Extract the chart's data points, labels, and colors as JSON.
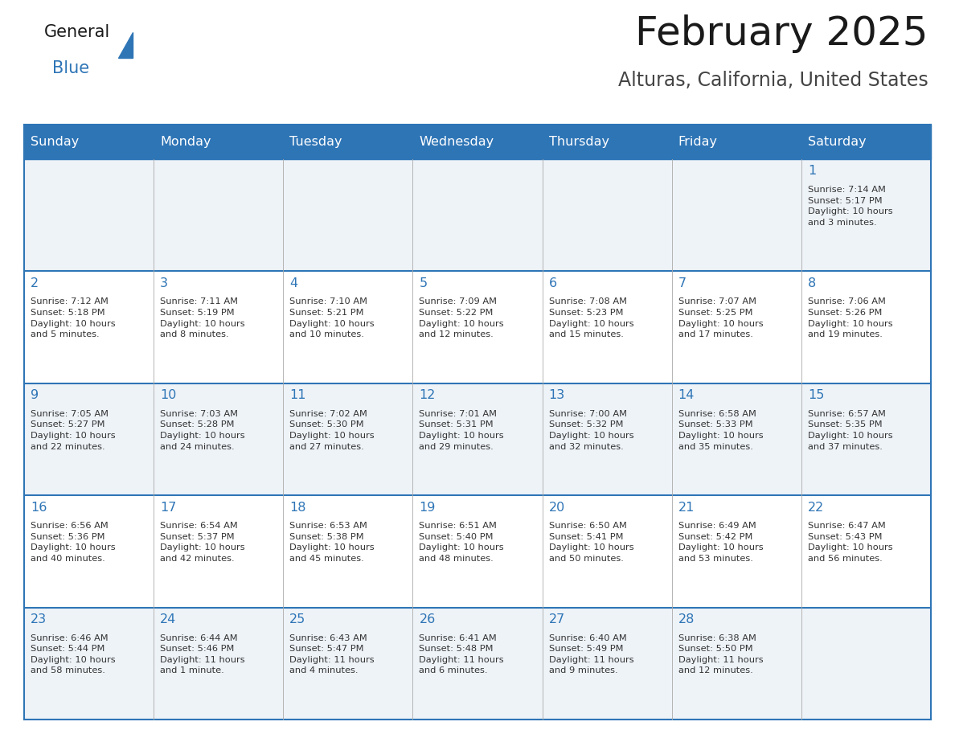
{
  "title": "February 2025",
  "subtitle": "Alturas, California, United States",
  "header_bg": "#2E75B6",
  "header_text_color": "#FFFFFF",
  "cell_bg_light": "#EEF3F8",
  "cell_bg_white": "#FFFFFF",
  "day_headers": [
    "Sunday",
    "Monday",
    "Tuesday",
    "Wednesday",
    "Thursday",
    "Friday",
    "Saturday"
  ],
  "title_color": "#1A1A1A",
  "subtitle_color": "#444444",
  "day_num_color": "#2E75B6",
  "info_color": "#333333",
  "line_color": "#2E75B6",
  "weeks": [
    [
      {
        "day": "",
        "info": ""
      },
      {
        "day": "",
        "info": ""
      },
      {
        "day": "",
        "info": ""
      },
      {
        "day": "",
        "info": ""
      },
      {
        "day": "",
        "info": ""
      },
      {
        "day": "",
        "info": ""
      },
      {
        "day": "1",
        "info": "Sunrise: 7:14 AM\nSunset: 5:17 PM\nDaylight: 10 hours\nand 3 minutes."
      }
    ],
    [
      {
        "day": "2",
        "info": "Sunrise: 7:12 AM\nSunset: 5:18 PM\nDaylight: 10 hours\nand 5 minutes."
      },
      {
        "day": "3",
        "info": "Sunrise: 7:11 AM\nSunset: 5:19 PM\nDaylight: 10 hours\nand 8 minutes."
      },
      {
        "day": "4",
        "info": "Sunrise: 7:10 AM\nSunset: 5:21 PM\nDaylight: 10 hours\nand 10 minutes."
      },
      {
        "day": "5",
        "info": "Sunrise: 7:09 AM\nSunset: 5:22 PM\nDaylight: 10 hours\nand 12 minutes."
      },
      {
        "day": "6",
        "info": "Sunrise: 7:08 AM\nSunset: 5:23 PM\nDaylight: 10 hours\nand 15 minutes."
      },
      {
        "day": "7",
        "info": "Sunrise: 7:07 AM\nSunset: 5:25 PM\nDaylight: 10 hours\nand 17 minutes."
      },
      {
        "day": "8",
        "info": "Sunrise: 7:06 AM\nSunset: 5:26 PM\nDaylight: 10 hours\nand 19 minutes."
      }
    ],
    [
      {
        "day": "9",
        "info": "Sunrise: 7:05 AM\nSunset: 5:27 PM\nDaylight: 10 hours\nand 22 minutes."
      },
      {
        "day": "10",
        "info": "Sunrise: 7:03 AM\nSunset: 5:28 PM\nDaylight: 10 hours\nand 24 minutes."
      },
      {
        "day": "11",
        "info": "Sunrise: 7:02 AM\nSunset: 5:30 PM\nDaylight: 10 hours\nand 27 minutes."
      },
      {
        "day": "12",
        "info": "Sunrise: 7:01 AM\nSunset: 5:31 PM\nDaylight: 10 hours\nand 29 minutes."
      },
      {
        "day": "13",
        "info": "Sunrise: 7:00 AM\nSunset: 5:32 PM\nDaylight: 10 hours\nand 32 minutes."
      },
      {
        "day": "14",
        "info": "Sunrise: 6:58 AM\nSunset: 5:33 PM\nDaylight: 10 hours\nand 35 minutes."
      },
      {
        "day": "15",
        "info": "Sunrise: 6:57 AM\nSunset: 5:35 PM\nDaylight: 10 hours\nand 37 minutes."
      }
    ],
    [
      {
        "day": "16",
        "info": "Sunrise: 6:56 AM\nSunset: 5:36 PM\nDaylight: 10 hours\nand 40 minutes."
      },
      {
        "day": "17",
        "info": "Sunrise: 6:54 AM\nSunset: 5:37 PM\nDaylight: 10 hours\nand 42 minutes."
      },
      {
        "day": "18",
        "info": "Sunrise: 6:53 AM\nSunset: 5:38 PM\nDaylight: 10 hours\nand 45 minutes."
      },
      {
        "day": "19",
        "info": "Sunrise: 6:51 AM\nSunset: 5:40 PM\nDaylight: 10 hours\nand 48 minutes."
      },
      {
        "day": "20",
        "info": "Sunrise: 6:50 AM\nSunset: 5:41 PM\nDaylight: 10 hours\nand 50 minutes."
      },
      {
        "day": "21",
        "info": "Sunrise: 6:49 AM\nSunset: 5:42 PM\nDaylight: 10 hours\nand 53 minutes."
      },
      {
        "day": "22",
        "info": "Sunrise: 6:47 AM\nSunset: 5:43 PM\nDaylight: 10 hours\nand 56 minutes."
      }
    ],
    [
      {
        "day": "23",
        "info": "Sunrise: 6:46 AM\nSunset: 5:44 PM\nDaylight: 10 hours\nand 58 minutes."
      },
      {
        "day": "24",
        "info": "Sunrise: 6:44 AM\nSunset: 5:46 PM\nDaylight: 11 hours\nand 1 minute."
      },
      {
        "day": "25",
        "info": "Sunrise: 6:43 AM\nSunset: 5:47 PM\nDaylight: 11 hours\nand 4 minutes."
      },
      {
        "day": "26",
        "info": "Sunrise: 6:41 AM\nSunset: 5:48 PM\nDaylight: 11 hours\nand 6 minutes."
      },
      {
        "day": "27",
        "info": "Sunrise: 6:40 AM\nSunset: 5:49 PM\nDaylight: 11 hours\nand 9 minutes."
      },
      {
        "day": "28",
        "info": "Sunrise: 6:38 AM\nSunset: 5:50 PM\nDaylight: 11 hours\nand 12 minutes."
      },
      {
        "day": "",
        "info": ""
      }
    ]
  ]
}
